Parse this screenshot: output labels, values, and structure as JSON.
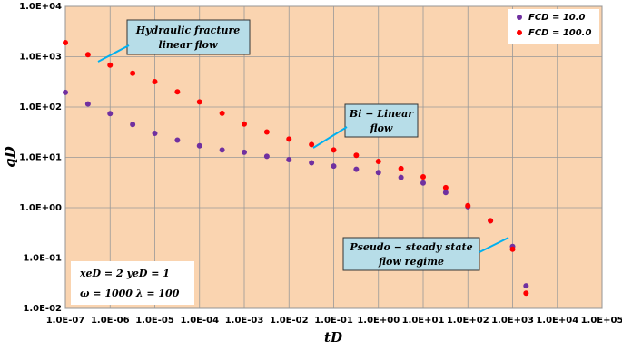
{
  "chart_data": {
    "type": "scatter",
    "log_x": true,
    "log_y": true,
    "grid": true,
    "legend": "top-right",
    "xlabel": "tD",
    "ylabel": "qD",
    "xlim": [
      1e-07,
      100000
    ],
    "ylim": [
      0.01,
      10000
    ],
    "xticks": [
      {
        "value": 1e-07,
        "label": "1.0E-07"
      },
      {
        "value": 1e-06,
        "label": "1.0E-06"
      },
      {
        "value": 1e-05,
        "label": "1.0E-05"
      },
      {
        "value": 0.0001,
        "label": "1.0E-04"
      },
      {
        "value": 0.001,
        "label": "1.0E-03"
      },
      {
        "value": 0.01,
        "label": "1.0E-02"
      },
      {
        "value": 0.1,
        "label": "1.0E-01"
      },
      {
        "value": 1,
        "label": "1.0E+00"
      },
      {
        "value": 10,
        "label": "1.0E+01"
      },
      {
        "value": 100,
        "label": "1.0E+02"
      },
      {
        "value": 1000,
        "label": "1.0E+03"
      },
      {
        "value": 10000,
        "label": "1.0E+04"
      },
      {
        "value": 100000,
        "label": "1.0E+05"
      }
    ],
    "yticks": [
      {
        "value": 0.01,
        "label": "1.0E-02"
      },
      {
        "value": 0.1,
        "label": "1.0E-01"
      },
      {
        "value": 1,
        "label": "1.0E+00"
      },
      {
        "value": 10,
        "label": "1.0E+01"
      },
      {
        "value": 100,
        "label": "1.0E+02"
      },
      {
        "value": 1000,
        "label": "1.0E+03"
      },
      {
        "value": 10000,
        "label": "1.0E+04"
      }
    ],
    "x": [
      1e-07,
      3.2e-07,
      1e-06,
      3.2e-06,
      1e-05,
      3.2e-05,
      0.0001,
      0.00032,
      0.001,
      0.0032,
      0.01,
      0.032,
      0.1,
      0.32,
      1,
      3.2,
      10,
      32,
      100,
      320,
      1000,
      2000
    ],
    "series": [
      {
        "name": "FCD = 10.0",
        "color": "#7030a0",
        "values": [
          195,
          115,
          74,
          45,
          30,
          22,
          17,
          14,
          12.6,
          10.5,
          9,
          7.8,
          6.7,
          5.8,
          5,
          4.0,
          3.1,
          2.0,
          1.05,
          0.55,
          0.17,
          0.028
        ]
      },
      {
        "name": "FCD = 100.0",
        "color": "#ff0000",
        "values": [
          1900,
          1100,
          680,
          470,
          320,
          200,
          126,
          75,
          46,
          32,
          23,
          18,
          14,
          11,
          8.3,
          6.0,
          4.1,
          2.5,
          1.1,
          0.55,
          0.15,
          0.02
        ]
      }
    ],
    "annotations": [
      {
        "lines": [
          "Hydraulic fracture",
          "linear flow"
        ]
      },
      {
        "lines": [
          "Bi − Linear",
          "flow"
        ]
      },
      {
        "lines": [
          "Pseudo − steady state",
          "flow regime"
        ]
      },
      {
        "lines": [
          "xeD = 2   yeD = 1",
          "ω = 1000     λ = 100"
        ]
      }
    ]
  }
}
